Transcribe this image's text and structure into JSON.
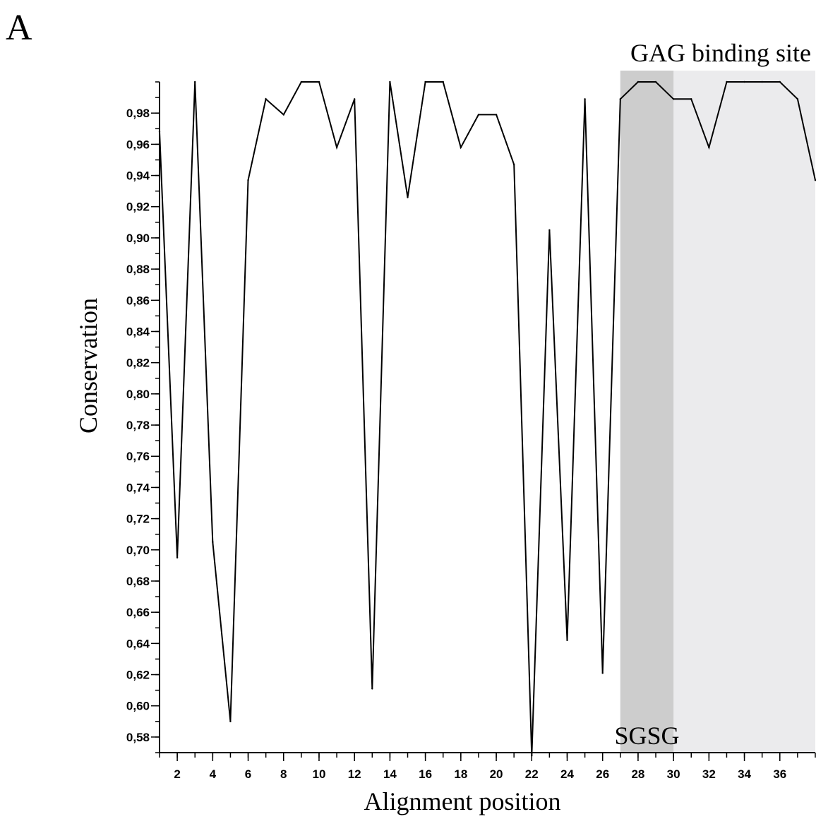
{
  "panel_label": "A",
  "chart_data": {
    "type": "line",
    "xlabel": "Alignment position",
    "ylabel": "Conservation",
    "xlim": [
      1,
      38
    ],
    "ylim": [
      0.57,
      1.0
    ],
    "x_ticks": [
      2,
      4,
      6,
      8,
      10,
      12,
      14,
      16,
      18,
      20,
      22,
      24,
      26,
      28,
      30,
      32,
      34,
      36
    ],
    "y_ticks": [
      "0,58",
      "0,60",
      "0,62",
      "0,64",
      "0,66",
      "0,68",
      "0,70",
      "0,72",
      "0,74",
      "0,76",
      "0,78",
      "0,80",
      "0,82",
      "0,84",
      "0,86",
      "0,88",
      "0,90",
      "0,92",
      "0,94",
      "0,96",
      "0,98"
    ],
    "y_tick_values": [
      0.58,
      0.6,
      0.62,
      0.64,
      0.66,
      0.68,
      0.7,
      0.72,
      0.74,
      0.76,
      0.78,
      0.8,
      0.82,
      0.84,
      0.86,
      0.88,
      0.9,
      0.92,
      0.94,
      0.96,
      0.98
    ],
    "grid": false,
    "x": [
      1,
      2,
      3,
      4,
      5,
      6,
      7,
      8,
      9,
      10,
      11,
      12,
      13,
      14,
      15,
      16,
      17,
      18,
      19,
      20,
      21,
      22,
      23,
      24,
      25,
      26,
      27,
      28,
      29,
      30,
      31,
      32,
      33,
      34,
      35,
      36,
      37,
      38
    ],
    "series": [
      {
        "values": [
          0.968,
          0.695,
          1.0,
          0.705,
          0.59,
          0.937,
          0.989,
          0.979,
          1.0,
          1.0,
          0.958,
          0.989,
          0.611,
          1.0,
          0.926,
          1.0,
          1.0,
          0.958,
          0.979,
          0.979,
          0.947,
          0.568,
          0.905,
          0.642,
          0.989,
          0.621,
          0.989,
          1.0,
          1.0,
          0.989,
          0.989,
          0.958,
          1.0,
          1.0,
          1.0,
          1.0,
          0.989,
          0.937
        ],
        "color": "#000000"
      }
    ],
    "regions": [
      {
        "label": "GAG binding site",
        "x_start": 27,
        "x_end": 38,
        "color": "#ebebed"
      },
      {
        "label": "SGSG",
        "x_start": 27,
        "x_end": 30,
        "color": "#cdcdcd"
      }
    ]
  }
}
